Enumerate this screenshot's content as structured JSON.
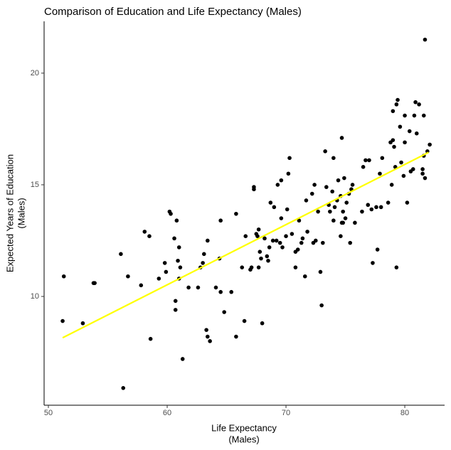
{
  "chart_data": {
    "type": "scatter",
    "title": "Comparison of Education and Life Expectancy (Males)",
    "xlabel": [
      "Life Expectancy",
      "(Males)"
    ],
    "ylabel": [
      "Expected Years of Education",
      "(Males)"
    ],
    "color": "#000000",
    "x": [
      51.3,
      51.2,
      52.9,
      53.8,
      53.9,
      56.1,
      56.3,
      56.7,
      57.8,
      58.1,
      58.5,
      58.6,
      59.3,
      59.8,
      59.9,
      60.2,
      60.3,
      60.6,
      60.7,
      60.7,
      60.8,
      60.9,
      61.0,
      61.0,
      61.1,
      61.3,
      61.8,
      62.6,
      62.8,
      63.0,
      63.1,
      63.4,
      63.3,
      63.4,
      63.6,
      64.1,
      64.4,
      64.5,
      64.5,
      64.8,
      65.4,
      65.8,
      65.8,
      66.3,
      66.6,
      66.5,
      67.0,
      67.1,
      67.3,
      67.3,
      67.5,
      67.7,
      67.7,
      67.6,
      67.8,
      67.9,
      68.0,
      68.2,
      68.4,
      68.5,
      68.6,
      68.7,
      68.9,
      69.0,
      69.2,
      69.3,
      69.6,
      69.5,
      69.6,
      69.7,
      70.0,
      70.1,
      70.2,
      70.3,
      70.5,
      70.8,
      70.8,
      71.0,
      71.1,
      71.3,
      71.4,
      71.6,
      71.7,
      71.8,
      72.2,
      72.4,
      72.3,
      72.5,
      72.7,
      72.9,
      73.0,
      73.1,
      73.3,
      73.4,
      73.6,
      73.7,
      73.9,
      74.0,
      74.0,
      74.1,
      74.3,
      74.4,
      74.6,
      74.6,
      74.7,
      74.7,
      74.8,
      74.8,
      74.9,
      75.0,
      75.1,
      75.3,
      75.4,
      75.5,
      75.6,
      75.8,
      76.4,
      76.5,
      76.7,
      76.9,
      77.0,
      77.2,
      77.3,
      77.6,
      77.7,
      77.9,
      78.0,
      78.1,
      78.6,
      78.8,
      78.9,
      79.0,
      79.0,
      79.1,
      79.2,
      79.3,
      79.4,
      79.3,
      79.6,
      79.7,
      79.9,
      80.0,
      80.0,
      80.2,
      80.4,
      80.5,
      80.7,
      80.8,
      80.9,
      81.0,
      81.2,
      81.5,
      81.5,
      81.6,
      81.6,
      81.7,
      81.7,
      81.9,
      82.1
    ],
    "values": [
      10.9,
      8.9,
      8.8,
      10.6,
      10.6,
      11.9,
      5.9,
      10.9,
      10.5,
      12.9,
      12.7,
      8.1,
      10.8,
      11.5,
      11.1,
      13.8,
      13.7,
      12.6,
      9.8,
      9.4,
      13.4,
      11.6,
      12.2,
      10.8,
      11.3,
      7.2,
      10.4,
      10.4,
      11.3,
      11.5,
      11.9,
      12.5,
      8.5,
      8.2,
      8.0,
      10.4,
      11.7,
      10.2,
      13.4,
      9.3,
      10.2,
      13.7,
      8.2,
      11.3,
      12.7,
      8.9,
      11.2,
      11.3,
      14.8,
      14.9,
      12.8,
      13.0,
      11.3,
      12.7,
      12.0,
      11.7,
      8.8,
      12.6,
      11.8,
      11.6,
      12.2,
      14.2,
      12.5,
      14.0,
      12.5,
      15.0,
      15.2,
      12.4,
      13.5,
      12.2,
      12.7,
      13.9,
      15.5,
      16.2,
      12.8,
      11.3,
      12.0,
      12.1,
      13.4,
      12.4,
      12.6,
      10.9,
      14.3,
      12.9,
      14.6,
      15.0,
      12.4,
      12.5,
      13.8,
      11.1,
      9.6,
      12.4,
      16.5,
      14.9,
      14.1,
      13.8,
      14.7,
      16.2,
      13.4,
      14.0,
      14.3,
      15.2,
      12.7,
      14.5,
      17.1,
      13.3,
      13.8,
      13.3,
      15.3,
      13.5,
      14.2,
      14.6,
      12.4,
      14.8,
      15.0,
      13.3,
      13.8,
      15.8,
      16.1,
      14.1,
      16.1,
      13.9,
      11.5,
      14.0,
      12.1,
      15.5,
      14.0,
      16.2,
      14.2,
      16.9,
      15.0,
      18.3,
      17.0,
      16.7,
      15.8,
      18.6,
      18.8,
      11.3,
      17.6,
      16.0,
      15.4,
      16.9,
      18.1,
      14.2,
      17.4,
      15.6,
      15.7,
      18.1,
      18.7,
      17.3,
      18.6,
      15.7,
      15.5,
      16.3,
      18.1,
      15.3,
      21.5,
      16.5,
      16.8
    ],
    "trend": {
      "x": [
        51.2,
        82.0
      ],
      "values": [
        8.15,
        16.45
      ],
      "color": "#ffff00"
    },
    "xlim": [
      49.64,
      83.35
    ],
    "ylim": [
      5.13,
      22.32
    ],
    "xticks": [
      50,
      60,
      70,
      80
    ],
    "yticks": [
      10,
      15,
      20
    ],
    "grid": false
  }
}
